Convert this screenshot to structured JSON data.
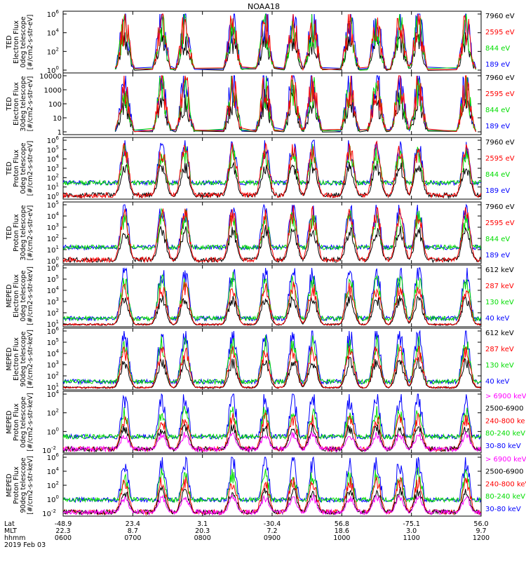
{
  "title": "NOAA18",
  "colors": {
    "blue": "#0000ff",
    "red": "#ff0000",
    "green": "#00dd00",
    "black": "#000000",
    "magenta": "#ff00ff"
  },
  "panels": [
    {
      "ylabel": [
        "TED",
        "Electron Flux",
        "0deg telescope",
        "[#/cm2-s-str-eV]"
      ],
      "ticks": [
        {
          "exp": "0"
        },
        {
          "exp": "2"
        },
        {
          "exp": "4"
        },
        {
          "exp": "6"
        }
      ],
      "tickStyle": "pow",
      "legend": [
        {
          "text": "7960 eV",
          "color": "black"
        },
        {
          "text": "2595 eV",
          "color": "red"
        },
        {
          "text": "844 eV",
          "color": "green"
        },
        {
          "text": "189 eV",
          "color": "blue"
        }
      ]
    },
    {
      "ylabel": [
        "TED",
        "Electron Flux",
        "30deg telescope",
        "[#/cm2-s-str-eV]"
      ],
      "ticks": [
        {
          "text": "1"
        },
        {
          "text": "10"
        },
        {
          "text": "100"
        },
        {
          "text": "1000"
        },
        {
          "text": "10000"
        }
      ],
      "tickStyle": "plain",
      "legend": [
        {
          "text": "7960 eV",
          "color": "black"
        },
        {
          "text": "2595 eV",
          "color": "red"
        },
        {
          "text": "844 eV",
          "color": "green"
        },
        {
          "text": "189 eV",
          "color": "blue"
        }
      ]
    },
    {
      "ylabel": [
        "TED",
        "Proton Flux",
        "0deg telescope",
        "[#/cm2-s-str-eV]"
      ],
      "ticks": [
        {
          "exp": "0"
        },
        {
          "exp": "1"
        },
        {
          "exp": "2"
        },
        {
          "exp": "3"
        },
        {
          "exp": "4"
        },
        {
          "exp": "5"
        },
        {
          "exp": "6"
        }
      ],
      "tickStyle": "pow",
      "legend": [
        {
          "text": "7960 eV",
          "color": "black"
        },
        {
          "text": "2595 eV",
          "color": "red"
        },
        {
          "text": "844 eV",
          "color": "green"
        },
        {
          "text": "189 eV",
          "color": "blue"
        }
      ]
    },
    {
      "ylabel": [
        "TED",
        "Proton Flux",
        "30deg telescope",
        "[#/cm2-s-str-eV]"
      ],
      "ticks": [
        {
          "exp": "0"
        },
        {
          "exp": "1"
        },
        {
          "exp": "2"
        },
        {
          "exp": "3"
        },
        {
          "exp": "4"
        },
        {
          "exp": "5"
        }
      ],
      "tickStyle": "pow",
      "legend": [
        {
          "text": "7960 eV",
          "color": "black"
        },
        {
          "text": "2595 eV",
          "color": "red"
        },
        {
          "text": "844 eV",
          "color": "green"
        },
        {
          "text": "189 eV",
          "color": "blue"
        }
      ]
    },
    {
      "ylabel": [
        "MEPED",
        "Electron Flux",
        "0deg telescope",
        "[#/cm2-s-str-keV]"
      ],
      "ticks": [
        {
          "exp": "1"
        },
        {
          "exp": "2"
        },
        {
          "exp": "3"
        },
        {
          "exp": "4"
        },
        {
          "exp": "5"
        },
        {
          "exp": "6"
        }
      ],
      "tickStyle": "pow",
      "legend": [
        {
          "text": "612 keV",
          "color": "black"
        },
        {
          "text": "287 keV",
          "color": "red"
        },
        {
          "text": "130 keV",
          "color": "green"
        },
        {
          "text": "40 keV",
          "color": "blue"
        }
      ]
    },
    {
      "ylabel": [
        "MEPED",
        "Electron Flux",
        "90deg telescope",
        "[#/cm2-s-str-keV]"
      ],
      "ticks": [
        {
          "exp": "1"
        },
        {
          "exp": "2"
        },
        {
          "exp": "3"
        },
        {
          "exp": "4"
        },
        {
          "exp": "5"
        },
        {
          "exp": "6"
        }
      ],
      "tickStyle": "pow",
      "legend": [
        {
          "text": "612 keV",
          "color": "black"
        },
        {
          "text": "287 keV",
          "color": "red"
        },
        {
          "text": "130 keV",
          "color": "green"
        },
        {
          "text": "40 keV",
          "color": "blue"
        }
      ]
    },
    {
      "ylabel": [
        "MEPED",
        "Proton Flux",
        "0deg telescope",
        "[#/cm2-s-str-keV]"
      ],
      "ticks": [
        {
          "exp": "-2"
        },
        {
          "exp": "0"
        },
        {
          "exp": "2"
        },
        {
          "exp": "4"
        }
      ],
      "tickStyle": "pow",
      "legend": [
        {
          "text": "> 6900 keV",
          "color": "magenta"
        },
        {
          "text": "2500-6900",
          "color": "black"
        },
        {
          "text": "240-800 ke",
          "color": "red"
        },
        {
          "text": "80-240 keV",
          "color": "green"
        },
        {
          "text": "30-80 keV",
          "color": "blue"
        }
      ]
    },
    {
      "ylabel": [
        "MEPED",
        "Proton Flux",
        "90deg telescope",
        "[#/cm2-s-str-keV]"
      ],
      "ticks": [
        {
          "exp": "-2"
        },
        {
          "exp": "0"
        },
        {
          "exp": "2"
        },
        {
          "exp": "4"
        },
        {
          "exp": "6"
        }
      ],
      "tickStyle": "pow",
      "legend": [
        {
          "text": "> 6900 keV",
          "color": "magenta"
        },
        {
          "text": "2500-6900",
          "color": "black"
        },
        {
          "text": "240-800 keV",
          "color": "red"
        },
        {
          "text": "80-240 keV",
          "color": "green"
        },
        {
          "text": "30-80 keV",
          "color": "blue"
        }
      ]
    }
  ],
  "chart_data": {
    "type": "line",
    "title": "NOAA18",
    "date": "2019 Feb 03",
    "row_labels": [
      "Lat",
      "MLT",
      "hhmm"
    ],
    "columns": [
      {
        "Lat": "-48.9",
        "MLT": "22.3",
        "hhmm": "0600"
      },
      {
        "Lat": "23.4",
        "MLT": "8.7",
        "hhmm": "0700"
      },
      {
        "Lat": "3.1",
        "MLT": "20.3",
        "hhmm": "0800"
      },
      {
        "Lat": "-30.4",
        "MLT": "7.2",
        "hhmm": "0900"
      },
      {
        "Lat": "56.8",
        "MLT": "18.6",
        "hhmm": "1000"
      },
      {
        "Lat": "-75.1",
        "MLT": "3.0",
        "hhmm": "1100"
      },
      {
        "Lat": "56.0",
        "MLT": "9.7",
        "hhmm": "1200"
      }
    ],
    "x_range_hhmm": [
      "0600",
      "1200"
    ],
    "y_scale": "log",
    "passes_approx_hhmm": [
      "0653",
      "0725",
      "0745",
      "0826",
      "0854",
      "0918",
      "0935",
      "1007",
      "1030",
      "1050",
      "1106",
      "1147"
    ],
    "panel_series": [
      {
        "panel": "TED Electron Flux 0deg",
        "series": [
          "7960 eV",
          "2595 eV",
          "844 eV",
          "189 eV"
        ],
        "ylim_log10": [
          0,
          6
        ]
      },
      {
        "panel": "TED Electron Flux 30deg",
        "series": [
          "7960 eV",
          "2595 eV",
          "844 eV",
          "189 eV"
        ],
        "ylim_log10": [
          0,
          4
        ]
      },
      {
        "panel": "TED Proton Flux 0deg",
        "series": [
          "7960 eV",
          "2595 eV",
          "844 eV",
          "189 eV"
        ],
        "ylim_log10": [
          0,
          6
        ]
      },
      {
        "panel": "TED Proton Flux 30deg",
        "series": [
          "7960 eV",
          "2595 eV",
          "844 eV",
          "189 eV"
        ],
        "ylim_log10": [
          0,
          5
        ]
      },
      {
        "panel": "MEPED Electron Flux 0deg",
        "series": [
          "612 keV",
          "287 keV",
          "130 keV",
          "40 keV"
        ],
        "ylim_log10": [
          1,
          6
        ]
      },
      {
        "panel": "MEPED Electron Flux 90deg",
        "series": [
          "612 keV",
          "287 keV",
          "130 keV",
          "40 keV"
        ],
        "ylim_log10": [
          1,
          6
        ]
      },
      {
        "panel": "MEPED Proton Flux 0deg",
        "series": [
          "> 6900 keV",
          "2500-6900",
          "240-800 keV",
          "80-240 keV",
          "30-80 keV"
        ],
        "ylim_log10": [
          -2,
          4
        ]
      },
      {
        "panel": "MEPED Proton Flux 90deg",
        "series": [
          "> 6900 keV",
          "2500-6900",
          "240-800 keV",
          "80-240 keV",
          "30-80 keV"
        ],
        "ylim_log10": [
          -2,
          6
        ]
      }
    ]
  }
}
